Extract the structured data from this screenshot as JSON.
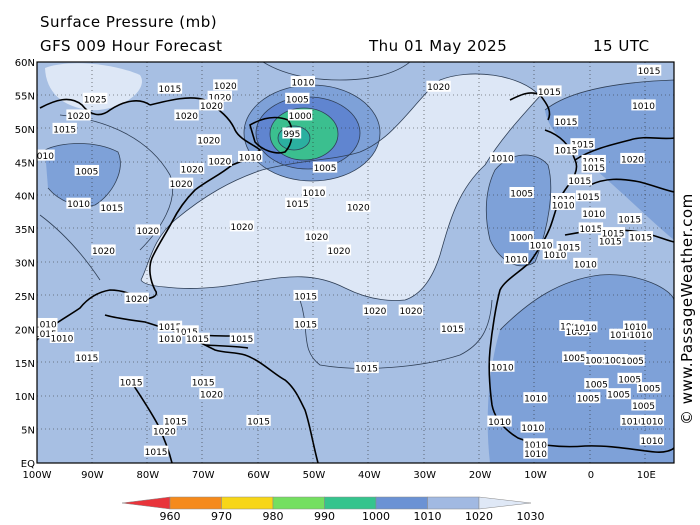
{
  "header": {
    "title": "Surface Pressure (mb)",
    "subtitle": "GFS 009 Hour Forecast",
    "date": "Thu 01 May 2025",
    "time": "15 UTC"
  },
  "watermark": "© www.PassageWeather.com",
  "axes": {
    "lat_ticks": [
      "60N",
      "55N",
      "50N",
      "45N",
      "40N",
      "35N",
      "30N",
      "25N",
      "20N",
      "15N",
      "10N",
      "5N",
      "EQ"
    ],
    "lon_ticks": [
      "100W",
      "90W",
      "80W",
      "70W",
      "60W",
      "50W",
      "40W",
      "30W",
      "20W",
      "10W",
      "0",
      "10E"
    ]
  },
  "colorbar": {
    "labels": [
      "960",
      "970",
      "980",
      "990",
      "1000",
      "1010",
      "1020",
      "1030"
    ],
    "colors": [
      "#e8343b",
      "#f58a1c",
      "#f7d617",
      "#74df60",
      "#35c48d",
      "#6b92d4",
      "#a1b9e2",
      "#dfe8f6"
    ]
  },
  "isobar_labels": [
    {
      "text": "1020",
      "lon": -66,
      "lat": 56.5
    },
    {
      "text": "1025",
      "lon": -89.5,
      "lat": 54.5
    },
    {
      "text": "1015",
      "lon": -76,
      "lat": 56
    },
    {
      "text": "1010",
      "lon": -52,
      "lat": 57
    },
    {
      "text": "1005",
      "lon": -53,
      "lat": 54.5
    },
    {
      "text": "1000",
      "lon": -52.5,
      "lat": 52
    },
    {
      "text": "995",
      "lon": -54,
      "lat": 49.3
    },
    {
      "text": "1020",
      "lon": -67,
      "lat": 54.8
    },
    {
      "text": "1020",
      "lon": -68.5,
      "lat": 53.5
    },
    {
      "text": "1020",
      "lon": -92.5,
      "lat": 52
    },
    {
      "text": "1015",
      "lon": -95,
      "lat": 50
    },
    {
      "text": "1020",
      "lon": -73,
      "lat": 52
    },
    {
      "text": "1020",
      "lon": -69,
      "lat": 48.3
    },
    {
      "text": "1020",
      "lon": -67,
      "lat": 45.2
    },
    {
      "text": "1020",
      "lon": -72,
      "lat": 44
    },
    {
      "text": "1020",
      "lon": -74,
      "lat": 41.8
    },
    {
      "text": "1010",
      "lon": -99,
      "lat": 46
    },
    {
      "text": "1005",
      "lon": -91,
      "lat": 43.7
    },
    {
      "text": "1010",
      "lon": -92.5,
      "lat": 38.8
    },
    {
      "text": "1015",
      "lon": -86.5,
      "lat": 38.2
    },
    {
      "text": "1020",
      "lon": -80,
      "lat": 34.8
    },
    {
      "text": "1020",
      "lon": -88,
      "lat": 31.8
    },
    {
      "text": "1010",
      "lon": -61.5,
      "lat": 45.8
    },
    {
      "text": "1005",
      "lon": -48,
      "lat": 44.2
    },
    {
      "text": "1010",
      "lon": -50,
      "lat": 40.5
    },
    {
      "text": "1015",
      "lon": -53,
      "lat": 38.8
    },
    {
      "text": "1020",
      "lon": -42,
      "lat": 38.3
    },
    {
      "text": "1020",
      "lon": -63,
      "lat": 35.4
    },
    {
      "text": "1020",
      "lon": -49.5,
      "lat": 33.9
    },
    {
      "text": "1020",
      "lon": -45.5,
      "lat": 31.8
    },
    {
      "text": "1020",
      "lon": -27.5,
      "lat": 56.3
    },
    {
      "text": "1015",
      "lon": -7.5,
      "lat": 55.6
    },
    {
      "text": "1010",
      "lon": -16,
      "lat": 45.6
    },
    {
      "text": "1005",
      "lon": -12.5,
      "lat": 40.4
    },
    {
      "text": "1000",
      "lon": -12.5,
      "lat": 33.8
    },
    {
      "text": "1010",
      "lon": -13.5,
      "lat": 30.5
    },
    {
      "text": "1010",
      "lon": -5,
      "lat": 39.5
    },
    {
      "text": "1010",
      "lon": -5,
      "lat": 38.6
    },
    {
      "text": "1010",
      "lon": -9,
      "lat": 32.6
    },
    {
      "text": "1010",
      "lon": -6.5,
      "lat": 31.2
    },
    {
      "text": "1010",
      "lon": -1,
      "lat": 29.8
    },
    {
      "text": "1015",
      "lon": -4,
      "lat": 32.3
    },
    {
      "text": "1015",
      "lon": 0,
      "lat": 35.1
    },
    {
      "text": "1015",
      "lon": 3.5,
      "lat": 33.2
    },
    {
      "text": "1015",
      "lon": 7,
      "lat": 36.5
    },
    {
      "text": "1015",
      "lon": 9,
      "lat": 33.8
    },
    {
      "text": "1010",
      "lon": 0.5,
      "lat": 37.3
    },
    {
      "text": "1015",
      "lon": 4,
      "lat": 34.4
    },
    {
      "text": "1015",
      "lon": -4.5,
      "lat": 51.1
    },
    {
      "text": "1015",
      "lon": -1.5,
      "lat": 47.7
    },
    {
      "text": "1015",
      "lon": -4.5,
      "lat": 46.8
    },
    {
      "text": "1015",
      "lon": 0.5,
      "lat": 45.2
    },
    {
      "text": "1020",
      "lon": 7.5,
      "lat": 45.5
    },
    {
      "text": "1015",
      "lon": 0.5,
      "lat": 44.2
    },
    {
      "text": "1015",
      "lon": -2,
      "lat": 42.3
    },
    {
      "text": "1015",
      "lon": -0.5,
      "lat": 39.9
    },
    {
      "text": "1010",
      "lon": 9.5,
      "lat": 53.5
    },
    {
      "text": "1015",
      "lon": 10.5,
      "lat": 58.7
    },
    {
      "text": "1020",
      "lon": -82,
      "lat": 24.6
    },
    {
      "text": "1015",
      "lon": -51.5,
      "lat": 25
    },
    {
      "text": "1020",
      "lon": -39,
      "lat": 22.8
    },
    {
      "text": "1020",
      "lon": -32.5,
      "lat": 22.8
    },
    {
      "text": "1015",
      "lon": -51.5,
      "lat": 20.8
    },
    {
      "text": "1015",
      "lon": -25,
      "lat": 20.1
    },
    {
      "text": "1015",
      "lon": -40.5,
      "lat": 14.2
    },
    {
      "text": "1010",
      "lon": -98.5,
      "lat": 20.8
    },
    {
      "text": "1015",
      "lon": -98.5,
      "lat": 19.4
    },
    {
      "text": "1010",
      "lon": -95.5,
      "lat": 18.7
    },
    {
      "text": "1015",
      "lon": -91,
      "lat": 15.8
    },
    {
      "text": "1015",
      "lon": -76,
      "lat": 20.4
    },
    {
      "text": "1015",
      "lon": -73,
      "lat": 19.7
    },
    {
      "text": "1010",
      "lon": -76,
      "lat": 18.6
    },
    {
      "text": "1015",
      "lon": -71,
      "lat": 18.6
    },
    {
      "text": "1015",
      "lon": -63,
      "lat": 18.6
    },
    {
      "text": "1015",
      "lon": -83,
      "lat": 12.1
    },
    {
      "text": "1015",
      "lon": -70,
      "lat": 12.1
    },
    {
      "text": "1020",
      "lon": -68.5,
      "lat": 10.3
    },
    {
      "text": "1015",
      "lon": -75,
      "lat": 6.3
    },
    {
      "text": "1020",
      "lon": -77,
      "lat": 4.8
    },
    {
      "text": "1015",
      "lon": -60,
      "lat": 6.3
    },
    {
      "text": "1015",
      "lon": -78.5,
      "lat": 1.7
    },
    {
      "text": "1010",
      "lon": -16,
      "lat": 14.4
    },
    {
      "text": "1010",
      "lon": -10,
      "lat": 9.7
    },
    {
      "text": "1010",
      "lon": -16.5,
      "lat": 6.2
    },
    {
      "text": "1010",
      "lon": -10.5,
      "lat": 5.3
    },
    {
      "text": "1010",
      "lon": -10,
      "lat": 2.8
    },
    {
      "text": "1010",
      "lon": -10,
      "lat": 1.4
    },
    {
      "text": "1005",
      "lon": -3.5,
      "lat": 20.5
    },
    {
      "text": "1005",
      "lon": -2.5,
      "lat": 19.7
    },
    {
      "text": "1005",
      "lon": -3,
      "lat": 15.8
    },
    {
      "text": "1005",
      "lon": 1,
      "lat": 15.4
    },
    {
      "text": "1005",
      "lon": 4.5,
      "lat": 15.4
    },
    {
      "text": "1005",
      "lon": 7.5,
      "lat": 15.3
    },
    {
      "text": "1005",
      "lon": 7,
      "lat": 12.6
    },
    {
      "text": "1005",
      "lon": 1,
      "lat": 11.8
    },
    {
      "text": "1005",
      "lon": 10.5,
      "lat": 11.2
    },
    {
      "text": "1005",
      "lon": 5,
      "lat": 10.3
    },
    {
      "text": "1005",
      "lon": -0.5,
      "lat": 9.7
    },
    {
      "text": "1005",
      "lon": 9.5,
      "lat": 8.6
    },
    {
      "text": "1010",
      "lon": 5.5,
      "lat": 19.2
    },
    {
      "text": "1010",
      "lon": 9,
      "lat": 19.2
    },
    {
      "text": "1010",
      "lon": 8,
      "lat": 20.4
    },
    {
      "text": "1010",
      "lon": 7.5,
      "lat": 6.3
    },
    {
      "text": "1010",
      "lon": 11,
      "lat": 6.3
    },
    {
      "text": "1010",
      "lon": 11,
      "lat": 3.4
    },
    {
      "text": "1010",
      "lon": -1,
      "lat": 20.3
    }
  ]
}
